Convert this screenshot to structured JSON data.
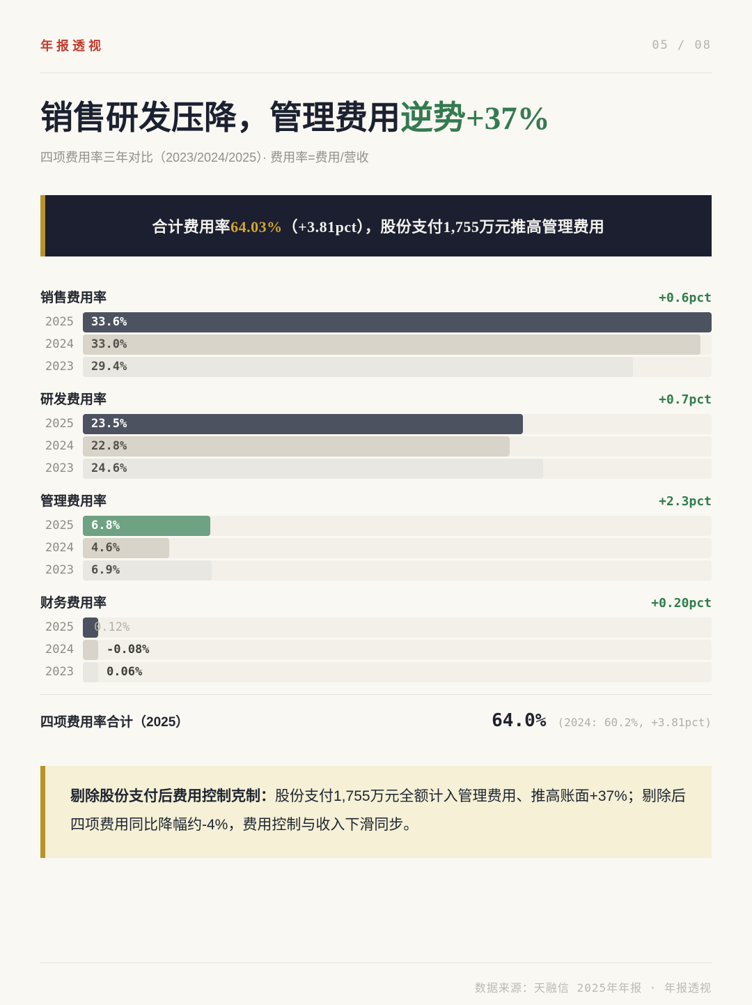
{
  "page": {
    "brand": "年报透视",
    "page_num": "05 / 08",
    "title_main": "销售研发压降，管理费用",
    "title_accent": "逆势+37%",
    "subtitle": "四项费用率三年对比（2023/2024/2025）· 费用率=费用/营收",
    "banner": {
      "pre": "合计费用率",
      "highlight": "64.03%",
      "post": "（+3.81pct），股份支付1,755万元推高管理费用"
    },
    "summary": {
      "label": "四项费用率合计（2025）",
      "value": "64.0%",
      "note": "(2024: 60.2%, +3.81pct)"
    },
    "note": {
      "lead": "剔除股份支付后费用控制克制：",
      "body": "股份支付1,755万元全额计入管理费用、推高账面+37%；剔除后四项费用同比降幅约-4%，费用控制与收入下滑同步。"
    },
    "footer": "数据来源：天融信 2025年年报 · 年报透视",
    "colors": {
      "accent_red": "#c23b2b",
      "accent_green": "#2f7d4d",
      "title_green": "#347a50",
      "gold": "#b8922a",
      "gold_text": "#d4a62e",
      "banner_bg": "#1b1f30",
      "note_bg": "#f5f0d6",
      "page_bg": "#faf8f3",
      "bar_dark": "#4d5260",
      "bar_tan": "#d8d4c9",
      "bar_light": "#e9e7e1",
      "bar_green": "#6fa183",
      "track": "#f2f0e9"
    }
  },
  "chart_data": {
    "type": "bar",
    "orientation": "horizontal",
    "title": "四项费用率三年对比（2023/2024/2025）",
    "unit": "%",
    "max_value": 33.6,
    "xlim": [
      0,
      33.6
    ],
    "categories": [
      "2025",
      "2024",
      "2023"
    ],
    "sections": [
      {
        "id": "sales",
        "title": "销售费用率",
        "delta": "+0.6pct",
        "bars": [
          {
            "year": "2025",
            "value": 33.6,
            "label": "33.6%",
            "style": "dark",
            "label_pos": "in"
          },
          {
            "year": "2024",
            "value": 33.0,
            "label": "33.0%",
            "style": "tan",
            "label_pos": "in"
          },
          {
            "year": "2023",
            "value": 29.4,
            "label": "29.4%",
            "style": "light",
            "label_pos": "in"
          }
        ]
      },
      {
        "id": "rnd",
        "title": "研发费用率",
        "delta": "+0.7pct",
        "bars": [
          {
            "year": "2025",
            "value": 23.5,
            "label": "23.5%",
            "style": "dark",
            "label_pos": "in"
          },
          {
            "year": "2024",
            "value": 22.8,
            "label": "22.8%",
            "style": "tan",
            "label_pos": "in"
          },
          {
            "year": "2023",
            "value": 24.6,
            "label": "24.6%",
            "style": "light",
            "label_pos": "in"
          }
        ]
      },
      {
        "id": "admin",
        "title": "管理费用率",
        "delta": "+2.3pct",
        "bars": [
          {
            "year": "2025",
            "value": 6.8,
            "label": "6.8%",
            "style": "green",
            "label_pos": "in"
          },
          {
            "year": "2024",
            "value": 4.6,
            "label": "4.6%",
            "style": "tan",
            "label_pos": "in"
          },
          {
            "year": "2023",
            "value": 6.9,
            "label": "6.9%",
            "style": "light",
            "label_pos": "in"
          }
        ]
      },
      {
        "id": "finance",
        "title": "财务费用率",
        "delta": "+0.20pct",
        "bars": [
          {
            "year": "2025",
            "value": 0.12,
            "label": "0.12%",
            "style": "dark",
            "label_pos": "out",
            "muted": true
          },
          {
            "year": "2024",
            "value": -0.08,
            "label": "-0.08%",
            "style": "tan",
            "label_pos": "out"
          },
          {
            "year": "2023",
            "value": 0.06,
            "label": "0.06%",
            "style": "light",
            "label_pos": "out"
          }
        ]
      }
    ],
    "total_row": {
      "label": "四项费用率合计（2025）",
      "value_2025": 64.0,
      "value_2024": 60.2,
      "delta": "+3.81pct"
    },
    "legend_position": "none",
    "grid": false
  }
}
